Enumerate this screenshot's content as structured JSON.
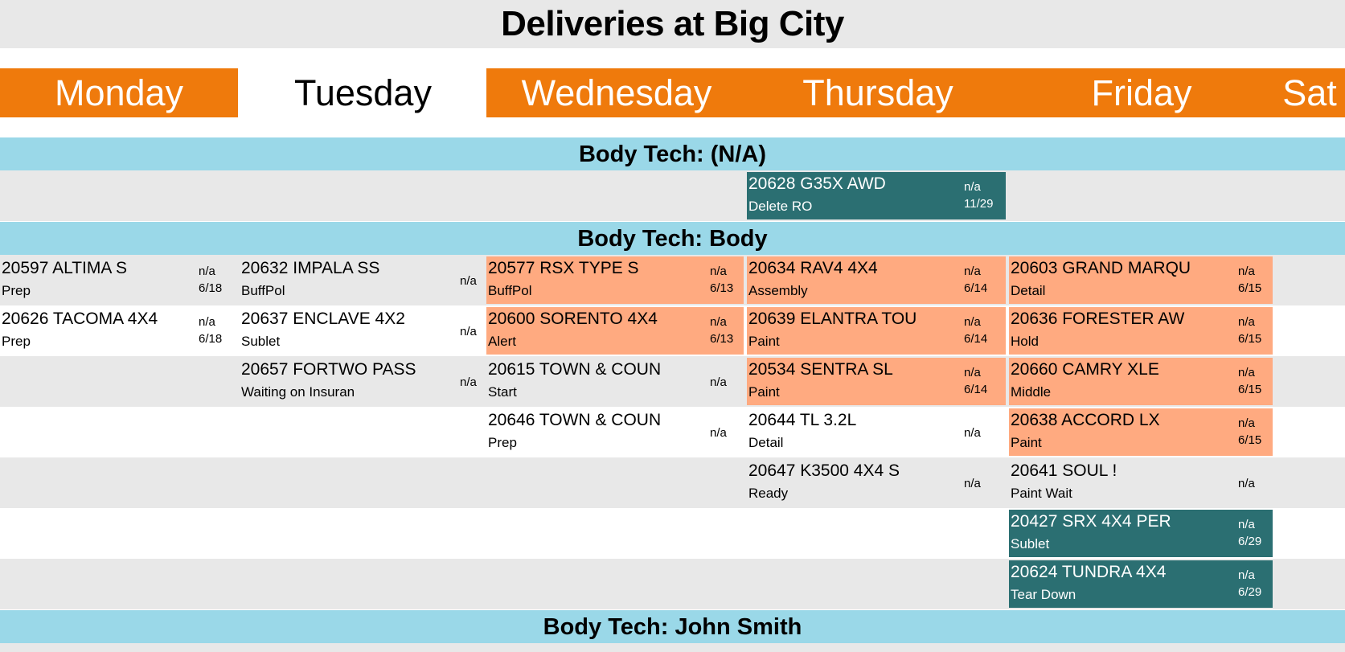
{
  "title": "Deliveries at Big City",
  "days": [
    "Monday",
    "Tuesday",
    "Wednesday",
    "Thursday",
    "Friday",
    "Sat"
  ],
  "colors": {
    "orange_header": "#ef7a0c",
    "section_blue": "#9ad8e8",
    "late_orange": "#ffaa80",
    "teal": "#2b6f72",
    "row_gray": "#e8e8e8"
  },
  "sections": [
    {
      "label": "Body Tech: (N/A)"
    },
    {
      "label": "Body Tech: Body"
    },
    {
      "label": "Body Tech: John Smith"
    }
  ],
  "cards": [
    {
      "day": "Thursday",
      "main": "20628 G35X AWD",
      "sub": "Delete RO",
      "na": "n/a",
      "date": "11/29",
      "style": "teal"
    },
    {
      "day": "Monday",
      "main": "20597 ALTIMA S",
      "sub": "Prep",
      "na": "n/a",
      "date": "6/18",
      "style": "gray"
    },
    {
      "day": "Tuesday",
      "main": "20632 IMPALA SS",
      "sub": "BuffPol",
      "na": "n/a",
      "date": "",
      "style": "gray"
    },
    {
      "day": "Wednesday",
      "main": "20577 RSX TYPE S",
      "sub": "BuffPol",
      "na": "n/a",
      "date": "6/13",
      "style": "orange"
    },
    {
      "day": "Thursday",
      "main": "20634 RAV4 4X4",
      "sub": "Assembly",
      "na": "n/a",
      "date": "6/14",
      "style": "orange"
    },
    {
      "day": "Friday",
      "main": "20603 GRAND MARQU",
      "sub": "Detail",
      "na": "n/a",
      "date": "6/15",
      "style": "orange"
    },
    {
      "day": "Monday",
      "main": "20626 TACOMA 4X4",
      "sub": "Prep",
      "na": "n/a",
      "date": "6/18",
      "style": "white"
    },
    {
      "day": "Tuesday",
      "main": "20637 ENCLAVE 4X2",
      "sub": "Sublet",
      "na": "n/a",
      "date": "",
      "style": "white"
    },
    {
      "day": "Wednesday",
      "main": "20600 SORENTO 4X4",
      "sub": "Alert",
      "na": "n/a",
      "date": "6/13",
      "style": "orange"
    },
    {
      "day": "Thursday",
      "main": "20639 ELANTRA TOU",
      "sub": "Paint",
      "na": "n/a",
      "date": "6/14",
      "style": "orange"
    },
    {
      "day": "Friday",
      "main": "20636 FORESTER AW",
      "sub": "Hold",
      "na": "n/a",
      "date": "6/15",
      "style": "orange"
    },
    {
      "day": "Tuesday",
      "main": "20657 FORTWO PASS",
      "sub": "Waiting on Insuran",
      "na": "n/a",
      "date": "",
      "style": "gray"
    },
    {
      "day": "Wednesday",
      "main": "20615 TOWN & COUN",
      "sub": "Start",
      "na": "n/a",
      "date": "",
      "style": "gray"
    },
    {
      "day": "Thursday",
      "main": "20534 SENTRA SL",
      "sub": "Paint",
      "na": "n/a",
      "date": "6/14",
      "style": "orange"
    },
    {
      "day": "Friday",
      "main": "20660 CAMRY XLE",
      "sub": "Middle",
      "na": "n/a",
      "date": "6/15",
      "style": "orange"
    },
    {
      "day": "Wednesday",
      "main": "20646 TOWN & COUN",
      "sub": "Prep",
      "na": "n/a",
      "date": "",
      "style": "white"
    },
    {
      "day": "Thursday",
      "main": "20644 TL 3.2L",
      "sub": "Detail",
      "na": "n/a",
      "date": "",
      "style": "white"
    },
    {
      "day": "Friday",
      "main": "20638 ACCORD LX",
      "sub": "Paint",
      "na": "n/a",
      "date": "6/15",
      "style": "orange"
    },
    {
      "day": "Thursday",
      "main": "20647 K3500 4X4 S",
      "sub": "Ready",
      "na": "n/a",
      "date": "",
      "style": "gray"
    },
    {
      "day": "Friday",
      "main": "20641 SOUL !",
      "sub": "Paint Wait",
      "na": "n/a",
      "date": "",
      "style": "gray"
    },
    {
      "day": "Friday",
      "main": "20427 SRX 4X4 PER",
      "sub": "Sublet",
      "na": "n/a",
      "date": "6/29",
      "style": "teal"
    },
    {
      "day": "Friday",
      "main": "20624 TUNDRA 4X4",
      "sub": "Tear Down",
      "na": "n/a",
      "date": "6/29",
      "style": "teal"
    }
  ]
}
